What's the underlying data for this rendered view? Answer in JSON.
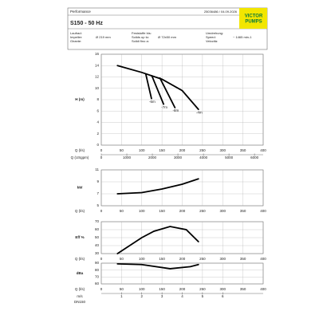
{
  "header": {
    "title": "Performance",
    "doc": "25036486 / 04.09.2026",
    "logo": [
      "VICTOR",
      "PUMPS"
    ],
    "model": "S150 - 50 Hz",
    "fields": [
      {
        "label": [
          "Laufrad:",
          "Impeller:",
          "Girante:"
        ],
        "value": "Ø 219 mm"
      },
      {
        "label": [
          "Feststoffe bis:",
          "Solids up to:",
          "Solidi fino a:"
        ],
        "value": "Ø 72x50 mm"
      },
      {
        "label": [
          "Umdrehung:",
          "Speed:",
          "Velocità:"
        ],
        "value": "~ 1465 min-1"
      }
    ]
  },
  "chart_data": [
    {
      "type": "line",
      "ylabel": "H (m)",
      "xlabel": "Q (l/s)",
      "xlim": [
        0,
        400
      ],
      "xticks": [
        0,
        50,
        100,
        150,
        200,
        250,
        300,
        350,
        400
      ],
      "ylim": [
        0,
        16
      ],
      "yticks": [
        0,
        2,
        4,
        6,
        8,
        10,
        12,
        14,
        16
      ],
      "grid": true,
      "x2label": "Q (USgpm)",
      "x2lim": [
        0,
        6340
      ],
      "x2ticks": [
        0,
        1000,
        2000,
        3000,
        4000,
        5000,
        6000
      ],
      "series": [
        {
          "label": "-4m",
          "color": "#000000",
          "x": [
            40,
            100,
            150,
            200,
            240
          ],
          "values": [
            14,
            12.8,
            11.6,
            9.6,
            6.3
          ]
        },
        {
          "label": "-6m",
          "color": "#000000",
          "x": [
            110,
            124
          ],
          "values": [
            12.5,
            8.2
          ]
        },
        {
          "label": "-7m",
          "color": "#000000",
          "x": [
            125,
            154
          ],
          "values": [
            12.2,
            7.2
          ]
        },
        {
          "label": "-8m",
          "color": "#000000",
          "x": [
            145,
            182
          ],
          "values": [
            11.8,
            6.6
          ]
        }
      ]
    },
    {
      "type": "line",
      "ylabel": "kW",
      "xlabel": "Q (l/s)",
      "xlim": [
        0,
        400
      ],
      "xticks": [
        0,
        50,
        100,
        150,
        200,
        250,
        300,
        350,
        400
      ],
      "ylim": [
        5,
        11
      ],
      "yticks": [
        5,
        7,
        9,
        11
      ],
      "grid": true,
      "series": [
        {
          "color": "#000000",
          "x": [
            40,
            100,
            150,
            200,
            240
          ],
          "values": [
            7,
            7.2,
            7.8,
            8.6,
            9.5
          ]
        }
      ]
    },
    {
      "type": "line",
      "ylabel": "Eff %",
      "xlabel": "Q (l/s)",
      "xlim": [
        0,
        400
      ],
      "xticks": [
        0,
        50,
        100,
        150,
        200,
        250,
        300,
        350,
        400
      ],
      "ylim": [
        30,
        70
      ],
      "yticks": [
        30,
        40,
        50,
        60,
        70
      ],
      "grid": true,
      "series": [
        {
          "color": "#000000",
          "x": [
            40,
            100,
            130,
            170,
            210,
            240
          ],
          "values": [
            30,
            50,
            58,
            64,
            60,
            45
          ]
        }
      ]
    },
    {
      "type": "line",
      "ylabel": "dBa",
      "xlabel": "Q (l/s)",
      "xlim": [
        0,
        400
      ],
      "xticks": [
        0,
        50,
        100,
        150,
        200,
        250,
        300,
        350,
        400
      ],
      "ylim": [
        60,
        90
      ],
      "yticks": [
        60,
        70,
        80,
        90
      ],
      "grid": true,
      "x2label": "m/s",
      "x2note": "DN150",
      "x2lim": [
        0,
        8
      ],
      "x2ticks": [
        1,
        2,
        3,
        4,
        5,
        6
      ],
      "series": [
        {
          "color": "#000000",
          "x": [
            40,
            100,
            170,
            220,
            240
          ],
          "values": [
            89,
            88,
            82,
            85,
            88
          ]
        }
      ]
    }
  ]
}
